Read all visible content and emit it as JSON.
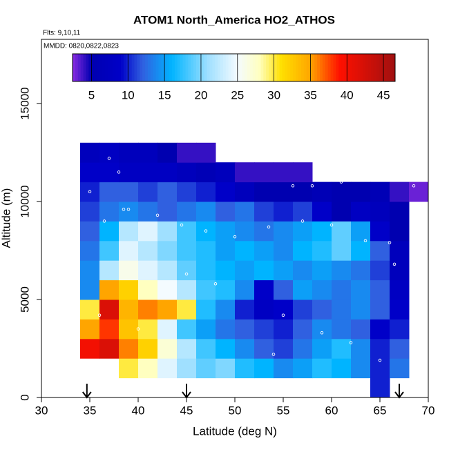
{
  "chart_data": {
    "type": "heatmap",
    "title": "ATOM1 North_America HO2_ATHOS",
    "flights": "Flts: 9,10,11",
    "dates": "MMDD: 0820,0822,0823",
    "x_label": "Latitude (deg N)",
    "y_label": "Altitude (m)",
    "xlim": [
      30,
      70
    ],
    "xticks": [
      30,
      35,
      40,
      45,
      50,
      55,
      60,
      65,
      70
    ],
    "ylim": [
      0,
      18275
    ],
    "yticks": [
      0,
      5000,
      10000,
      15000
    ],
    "x_edges": [
      34,
      36,
      38,
      40,
      42,
      44,
      46,
      48,
      50,
      52,
      54,
      56,
      58,
      60,
      62,
      64,
      66,
      68,
      70
    ],
    "y_edges": [
      0,
      1000,
      2000,
      3000,
      4000,
      5000,
      6000,
      7000,
      8000,
      9000,
      10000,
      11000,
      12000,
      13000
    ],
    "values": [
      [
        null,
        null,
        null,
        null,
        null,
        null,
        null,
        null,
        null,
        null,
        null,
        null,
        null,
        null,
        null,
        10,
        null,
        null
      ],
      [
        null,
        null,
        30,
        28,
        24,
        21,
        19,
        20,
        17,
        16,
        14,
        15,
        17,
        16,
        14,
        10,
        13,
        null
      ],
      [
        40,
        42,
        36,
        32,
        27,
        22,
        18,
        16,
        14,
        12,
        11,
        13,
        15,
        17,
        14,
        10,
        12,
        null
      ],
      [
        35,
        38,
        33,
        30,
        24,
        18,
        15,
        13,
        12,
        11,
        10,
        12,
        14,
        13,
        12,
        9,
        10,
        null
      ],
      [
        30,
        42,
        34,
        36,
        35,
        30,
        17,
        14,
        10,
        8,
        9,
        11,
        12,
        13,
        14,
        12,
        9,
        null
      ],
      [
        14,
        35,
        32,
        28,
        25,
        22,
        18,
        17,
        14,
        9,
        12,
        15,
        14,
        13,
        14,
        12,
        8,
        null
      ],
      [
        14,
        22,
        26,
        24,
        22,
        19,
        17,
        16,
        15,
        16,
        15,
        14,
        15,
        14,
        13,
        11,
        7,
        null
      ],
      [
        13,
        18,
        24,
        22,
        20,
        18,
        17,
        15,
        16,
        15,
        14,
        16,
        17,
        19,
        16,
        12,
        7,
        null
      ],
      [
        12,
        16,
        22,
        24,
        21,
        18,
        16,
        15,
        14,
        13,
        14,
        15,
        16,
        19,
        15,
        9,
        5,
        null
      ],
      [
        11,
        13,
        14,
        13,
        12,
        13,
        14,
        12,
        13,
        11,
        10,
        11,
        9,
        5,
        8,
        7,
        5,
        null
      ],
      [
        10,
        12,
        12,
        11,
        12,
        11,
        10,
        9,
        7,
        5,
        5,
        5,
        6,
        5,
        5,
        6,
        4,
        3
      ],
      [
        9,
        9,
        8,
        8,
        8,
        7,
        6,
        7,
        4,
        4,
        4,
        4,
        null,
        null,
        null,
        null,
        null,
        null
      ],
      [
        7,
        8,
        7,
        7,
        5,
        4,
        4,
        null,
        null,
        null,
        null,
        null,
        null,
        null,
        null,
        null,
        null,
        null
      ]
    ],
    "colormap": [
      [
        2.4,
        "#8a2be2"
      ],
      [
        5,
        "#0000b0"
      ],
      [
        9,
        "#0000c8"
      ],
      [
        12,
        "#3060e0"
      ],
      [
        16,
        "#00b4ff"
      ],
      [
        21,
        "#a0e0ff"
      ],
      [
        25,
        "#f4fbff"
      ],
      [
        28,
        "#ffffc0"
      ],
      [
        31,
        "#ffe000"
      ],
      [
        35,
        "#ffa500"
      ],
      [
        39,
        "#ff1000"
      ],
      [
        46.6,
        "#a01010"
      ]
    ],
    "colorbar": {
      "lim": [
        2.4,
        46.6
      ],
      "ticks": [
        5,
        10,
        15,
        20,
        25,
        30,
        35,
        40,
        45
      ]
    },
    "track": {
      "lat": [
        37,
        38,
        35,
        36.5,
        38.5,
        39,
        42,
        44.5,
        47,
        50,
        53.5,
        57,
        60,
        63.5,
        66,
        56,
        58,
        61,
        64,
        68.5,
        69.5,
        36,
        40,
        45,
        48,
        55,
        59,
        62,
        65,
        66.5,
        54
      ],
      "alt": [
        12200,
        11500,
        10500,
        9000,
        9600,
        9600,
        9300,
        8800,
        8500,
        8200,
        8700,
        9000,
        8800,
        8000,
        7900,
        10800,
        10800,
        11000,
        11300,
        10800,
        11100,
        4200,
        3500,
        6300,
        5800,
        4200,
        3300,
        2800,
        1900,
        6800,
        2200
      ]
    },
    "markers": [
      34.7,
      45,
      67
    ]
  }
}
